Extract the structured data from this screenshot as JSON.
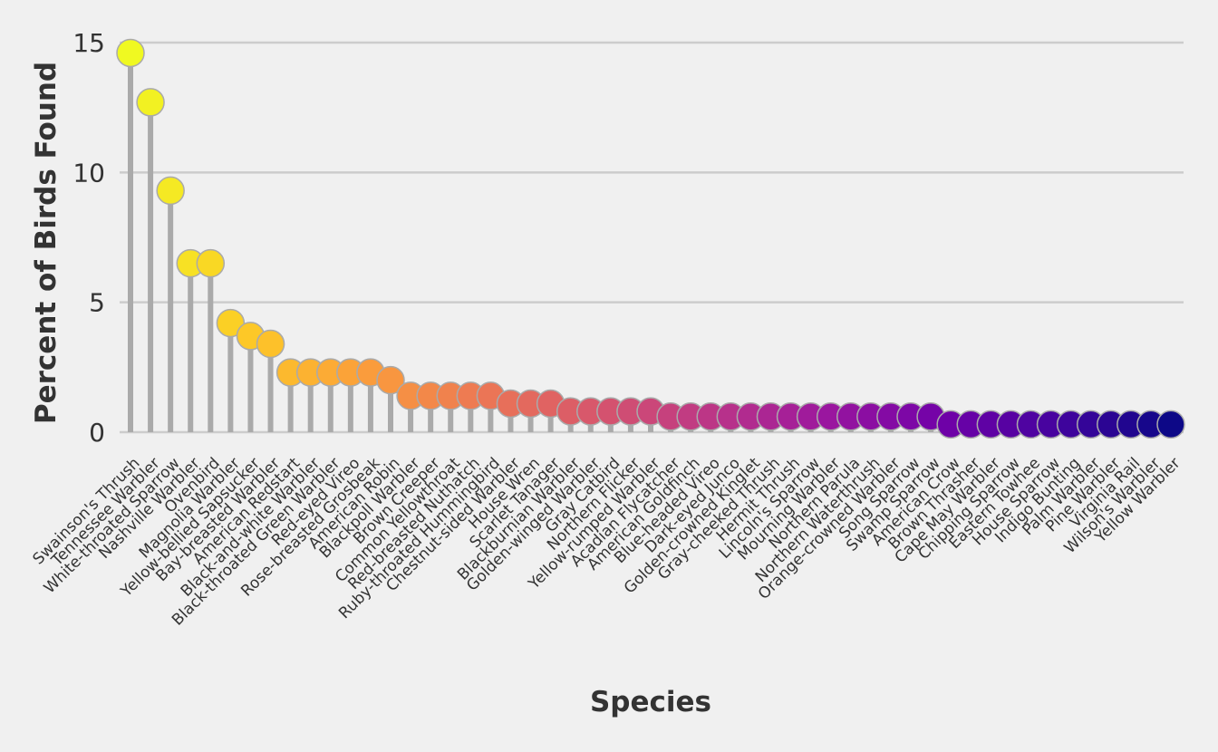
{
  "chart_data": {
    "type": "lollipop",
    "title": "",
    "xlabel": "Species",
    "ylabel": "Percent of Birds Found",
    "ylim": [
      0,
      15
    ],
    "yticks": [
      0,
      5,
      10,
      15
    ],
    "grid": "horizontal",
    "legend": "none",
    "colormap": "plasma",
    "categories": [
      "Swainson's Thrush",
      "Tennessee Warbler",
      "White-throated Sparrow",
      "Nashville Warbler",
      "Ovenbird",
      "Magnolia Warbler",
      "Yellow-bellied Sapsucker",
      "Bay-breasted Warbler",
      "American Redstart",
      "Black-and-white Warbler",
      "Black-throated Green Warbler",
      "Red-eyed Vireo",
      "Rose-breasted Grosbeak",
      "American Robin",
      "Blackpoll Warbler",
      "Brown Creeper",
      "Common Yellowthroat",
      "Red-breasted Nuthatch",
      "Ruby-throated Hummingbird",
      "Chestnut-sided Warbler",
      "House Wren",
      "Scarlet Tanager",
      "Blackburnian Warbler",
      "Golden-winged Warbler",
      "Gray Catbird",
      "Northern Flicker",
      "Yellow-rumped Warbler",
      "Acadian Flycatcher",
      "American Goldfinch",
      "Blue-headed Vireo",
      "Dark-eyed Junco",
      "Golden-crowned Kinglet",
      "Gray-cheeked Thrush",
      "Hermit Thrush",
      "Lincoln's Sparrow",
      "Mourning Warbler",
      "Northern Parula",
      "Northern Waterthrush",
      "Orange-crowned Warbler",
      "Song Sparrow",
      "Swamp Sparrow",
      "American Crow",
      "Brown Thrasher",
      "Cape May Warbler",
      "Chipping Sparrow",
      "Eastern Towhee",
      "House Sparrow",
      "Indigo Bunting",
      "Palm Warbler",
      "Pine Warbler",
      "Virginia Rail",
      "Wilson's Warbler",
      "Yellow Warbler"
    ],
    "values": [
      14.6,
      12.7,
      9.3,
      6.5,
      6.5,
      4.2,
      3.7,
      3.4,
      2.3,
      2.3,
      2.3,
      2.3,
      2.3,
      2.0,
      1.4,
      1.4,
      1.4,
      1.4,
      1.4,
      1.1,
      1.1,
      1.1,
      0.8,
      0.8,
      0.8,
      0.8,
      0.8,
      0.6,
      0.6,
      0.6,
      0.6,
      0.6,
      0.6,
      0.6,
      0.6,
      0.6,
      0.6,
      0.6,
      0.6,
      0.6,
      0.6,
      0.3,
      0.3,
      0.3,
      0.3,
      0.3,
      0.3,
      0.3,
      0.3,
      0.3,
      0.3,
      0.3,
      0.3
    ],
    "colors": {
      "stem": "#aaaaaa",
      "grid": "#cccccc",
      "marker_edge": "#aaaaaa",
      "text": "#333333",
      "background": "#f0f0f0",
      "gradient": [
        "#0d0887",
        "#46039f",
        "#7201a8",
        "#9c179e",
        "#bd3786",
        "#d8576b",
        "#ed7953",
        "#fb9f3a",
        "#fdca26",
        "#f0f921"
      ]
    }
  }
}
